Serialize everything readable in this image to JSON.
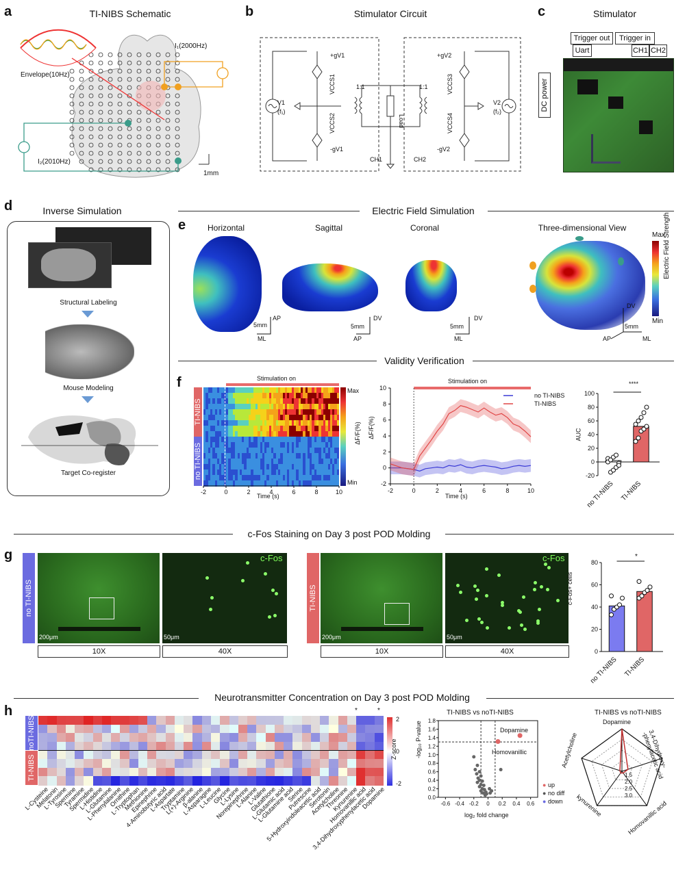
{
  "panels": {
    "a": {
      "label": "a",
      "title": "TI-NIBS Schematic",
      "i1": "I₁(2000Hz)",
      "i2": "I₂(2010Hz)",
      "envelope": "Envelope(10Hz)",
      "scale": "1mm"
    },
    "b": {
      "label": "b",
      "title": "Stimulator Circuit",
      "v1": "V1",
      "f1": "(f₁)",
      "v2": "V2",
      "f2": "(f₂)",
      "vccs1": "VCCS1",
      "vccs2": "VCCS2",
      "vccs3": "VCCS3",
      "vccs4": "VCCS4",
      "gv1p": "+gV1",
      "gv1m": "-gV1",
      "gv2p": "+gV2",
      "gv2m": "-gV2",
      "ratio": "1:1",
      "load": "Load",
      "ch1": "CH1",
      "ch2": "CH2"
    },
    "c": {
      "label": "c",
      "title": "Stimulator",
      "trigger_out": "Trigger out",
      "trigger_in": "Trigger in",
      "uart": "Uart",
      "ch1": "CH1",
      "ch2": "CH2",
      "dc_power": "DC power"
    },
    "d": {
      "label": "d",
      "title": "Inverse Simulation",
      "steps": [
        "Structural Labeling",
        "Mouse Modeling",
        "Target Co-register"
      ]
    },
    "e": {
      "label": "e",
      "section": "Electric Field Simulation",
      "views": [
        "Horizontal",
        "Sagittal",
        "Coronal",
        "Three-dimensional View"
      ],
      "max": "Max",
      "min": "Min",
      "bar_label": "Electric Field Strength",
      "scale": "5mm",
      "ax": {
        "ap": "AP",
        "ml": "ML",
        "dv": "DV"
      }
    },
    "f": {
      "label": "f",
      "section": "Validity Verification",
      "stim_on": "Stimulation on",
      "heat_rows": [
        "TI-NIBS",
        "no TI-NIBS"
      ],
      "heat_max": "Max",
      "heat_min": "Min",
      "heat_ylabel": "ΔF/F(%)",
      "xlabel": "Time (s)",
      "ylabel_line": "ΔF/F(%)",
      "legend": [
        "no TI-NIBS",
        "TI-NIBS"
      ],
      "bar_ylabel": "AUC",
      "sig": "****",
      "groups": [
        "no TI-NIBS",
        "TI-NIBS"
      ]
    },
    "g": {
      "label": "g",
      "section": "c-Fos Staining on Day 3 post POD Molding",
      "left_tab": "no TI-NIBS",
      "right_tab": "TI-NIBS",
      "marker": "c-Fos",
      "scale1": "200μm",
      "scale2": "50μm",
      "mag1": "10X",
      "mag2": "40X",
      "bar_ylabel": "c-Fos+ cells",
      "sig": "*",
      "groups": [
        "no TI-NIBS",
        "TI-NIBS"
      ]
    },
    "h": {
      "label": "h",
      "section": "Neurotransmitter Concentration on Day 3 post POD Molding",
      "row_tabs": [
        "noTI-NIBS",
        "TI-NIBS"
      ],
      "zlabel": "Z-score",
      "zticks": [
        "2",
        "0",
        "-2"
      ],
      "compounds": [
        "L-Cysteine",
        "Melatonin",
        "L-Tyrosine",
        "Spermine",
        "Tyramine",
        "Spermidine",
        "L-Histidine",
        "L-Glutamine",
        "L-Phenylalanine",
        "Ornithine",
        "L-Tryptophan",
        "Methionine",
        "Epinephrine",
        "4-Aminobutyric acid",
        "L-Aspartate",
        "Tryptamine",
        "L(+)-Arginine",
        "β-alanine",
        "L-Asparagine",
        "L-Leucine",
        "Glycine",
        "L-Lysine",
        "Norepinephrine",
        "L-Alanine",
        "L-Valine",
        "Glutathione",
        "L-Glutamic acid",
        "L-Glutamine acid",
        "Serine",
        "Putrescine",
        "5-Hydroxyindoleacetic acid",
        "Serotonin",
        "Acetylcholine",
        "Threonine",
        "Kynurenine",
        "Homovanillic acid",
        "3,4-Dihydroxyphenylacetic acid",
        "Dopamine"
      ],
      "star": "*",
      "volcano_title": "TI-NIBS vs noTI-NIBS",
      "volcano_xlabel": "log₂ fold change",
      "volcano_ylabel": "-log₁₀ P-value",
      "dopamine": "Dopamine",
      "homovanillic": "Homovanillic",
      "legend": [
        "up",
        "no diff",
        "down"
      ],
      "radar_title": "TI-NIBS vs noTI-NIBS",
      "radar_axes": [
        "Dopamine",
        "3,4-Dihydroxy-‑phenylacetic acid",
        "Homovanillic acid",
        "kynurenine",
        "Acetylcholine"
      ],
      "radar_ticks": [
        "1.5",
        "2.0",
        "2.5",
        "3.0"
      ]
    }
  },
  "chart_data": [
    {
      "type": "line",
      "title": "ΔF/F(%)",
      "xlabel": "Time (s)",
      "ylabel": "ΔF/F(%)",
      "xlim": [
        -2,
        10
      ],
      "ylim": [
        -2,
        10
      ],
      "x": [
        -2,
        -1,
        0,
        0.5,
        1,
        1.5,
        2,
        2.5,
        3,
        3.5,
        4,
        4.5,
        5,
        5.5,
        6,
        6.5,
        7,
        7.5,
        8,
        8.5,
        9,
        9.5,
        10
      ],
      "series": [
        {
          "name": "no TI-NIBS",
          "color": "#3b3bd6",
          "values": [
            0,
            0,
            -0.2,
            -0.4,
            -0.1,
            0,
            0.1,
            0,
            0.3,
            0.2,
            0.4,
            0.1,
            0,
            0.2,
            0.3,
            0.2,
            0.1,
            -0.1,
            0,
            0.2,
            0.3,
            0.2,
            0.3
          ]
        },
        {
          "name": "TI-NIBS",
          "color": "#e04545",
          "values": [
            0.5,
            0,
            -0.2,
            1.5,
            2.5,
            3.5,
            4.6,
            5.5,
            6.8,
            7.2,
            7.8,
            7.6,
            7.3,
            7.0,
            7.5,
            7.0,
            6.6,
            6.8,
            6.3,
            5.5,
            5.2,
            4.6,
            3.9
          ]
        }
      ]
    },
    {
      "type": "bar",
      "title": "AUC",
      "categories": [
        "no TI-NIBS",
        "TI-NIBS"
      ],
      "values": [
        2,
        52
      ],
      "ylim": [
        -20,
        100
      ],
      "yticks": [
        -20,
        0,
        20,
        40,
        60,
        80,
        100
      ],
      "sig": "****",
      "points": [
        [
          5,
          -15,
          -12,
          -8,
          -2,
          0,
          3,
          7,
          10,
          -5
        ],
        [
          30,
          35,
          45,
          48,
          52,
          55,
          60,
          65,
          72,
          80
        ]
      ]
    },
    {
      "type": "bar",
      "title": "c-Fos+ cells",
      "categories": [
        "no TI-NIBS",
        "TI-NIBS"
      ],
      "values": [
        41,
        54
      ],
      "ylim": [
        0,
        80
      ],
      "yticks": [
        0,
        20,
        40,
        60,
        80
      ],
      "sig": "*",
      "points": [
        [
          33,
          38,
          40,
          42,
          48,
          50
        ],
        [
          48,
          50,
          53,
          55,
          58,
          63
        ]
      ]
    },
    {
      "type": "scatter",
      "title": "TI-NIBS vs noTI-NIBS",
      "xlabel": "log₂ fold change",
      "ylabel": "-log₁₀ P-value",
      "xlim": [
        -0.7,
        0.7
      ],
      "ylim": [
        0,
        1.8
      ],
      "xticks": [
        -0.6,
        -0.4,
        -0.2,
        0,
        0.2,
        0.4,
        0.6
      ],
      "yticks": [
        0,
        0.2,
        0.4,
        0.6,
        0.8,
        1.0,
        1.2,
        1.4,
        1.6,
        1.8
      ],
      "up": [
        [
          0.45,
          1.45
        ],
        [
          0.14,
          1.31
        ]
      ],
      "nodiff": [
        [
          -0.2,
          0.95
        ],
        [
          -0.15,
          0.75
        ],
        [
          -0.18,
          0.65
        ],
        [
          -0.12,
          0.6
        ],
        [
          -0.16,
          0.55
        ],
        [
          -0.1,
          0.5
        ],
        [
          -0.14,
          0.45
        ],
        [
          -0.12,
          0.4
        ],
        [
          -0.08,
          0.38
        ],
        [
          -0.15,
          0.35
        ],
        [
          -0.1,
          0.3
        ],
        [
          -0.06,
          0.28
        ],
        [
          -0.12,
          0.25
        ],
        [
          -0.08,
          0.2
        ],
        [
          -0.05,
          0.18
        ],
        [
          -0.1,
          0.15
        ],
        [
          -0.03,
          0.12
        ],
        [
          -0.07,
          0.1
        ],
        [
          -0.02,
          0.08
        ],
        [
          -0.04,
          0.05
        ],
        [
          0.18,
          0.65
        ],
        [
          0.02,
          0.2
        ],
        [
          0.05,
          0.15
        ],
        [
          0.03,
          0.1
        ]
      ]
    }
  ]
}
